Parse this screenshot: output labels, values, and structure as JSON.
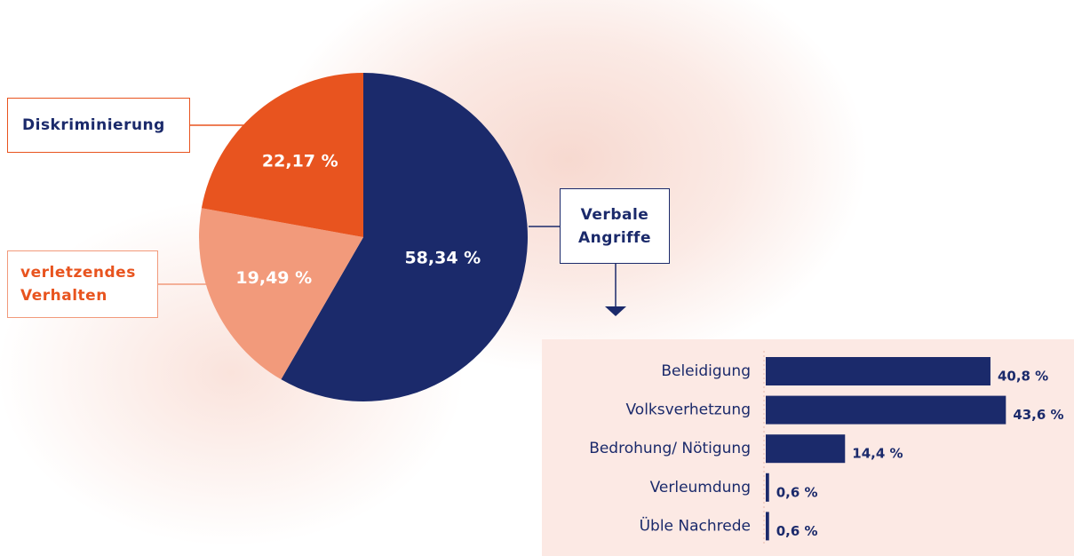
{
  "chart_data": [
    {
      "type": "pie",
      "categories": [
        "Verbale Angriffe",
        "verletzendes Verhalten",
        "Diskriminierung"
      ],
      "values": [
        58.34,
        19.49,
        22.17
      ],
      "value_labels": [
        "58,34 %",
        "19,49 %",
        "22,17 %"
      ],
      "colors": [
        "#1b2a6b",
        "#f29a7b",
        "#e8541f"
      ]
    },
    {
      "type": "hbar",
      "categories": [
        "Beleidigung",
        "Volksverhetzung",
        "Bedrohung/ Nötigung",
        "Verleumdung",
        "Üble Nachrede"
      ],
      "values": [
        40.8,
        43.6,
        14.4,
        0.6,
        0.6
      ],
      "value_labels": [
        "40,8 %",
        "43,6 %",
        "14,4 %",
        "0,6 %",
        "0,6 %"
      ],
      "color": "#1b2a6b"
    }
  ]
}
